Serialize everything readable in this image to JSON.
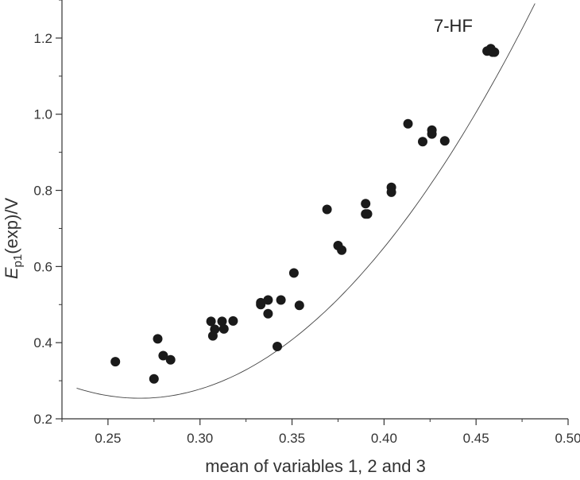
{
  "chart_data": {
    "type": "scatter",
    "xlabel": "mean of variables 1, 2 and 3",
    "ylabel_main": "E",
    "ylabel_sub": "p1",
    "ylabel_rest": "(exp)/V",
    "xlim": [
      0.225,
      0.5
    ],
    "ylim": [
      0.2,
      1.3
    ],
    "x_ticks": [
      "0.25",
      "0.30",
      "0.35",
      "0.40",
      "0.45",
      "0.50"
    ],
    "y_ticks": [
      "0.2",
      "0.4",
      "0.6",
      "0.8",
      "1.0",
      "1.2"
    ],
    "annotation": "7-HF",
    "points": [
      {
        "x": 0.254,
        "y": 0.35
      },
      {
        "x": 0.275,
        "y": 0.305
      },
      {
        "x": 0.277,
        "y": 0.41
      },
      {
        "x": 0.28,
        "y": 0.366
      },
      {
        "x": 0.284,
        "y": 0.355
      },
      {
        "x": 0.306,
        "y": 0.456
      },
      {
        "x": 0.307,
        "y": 0.418
      },
      {
        "x": 0.308,
        "y": 0.435
      },
      {
        "x": 0.312,
        "y": 0.456
      },
      {
        "x": 0.313,
        "y": 0.436
      },
      {
        "x": 0.318,
        "y": 0.457
      },
      {
        "x": 0.333,
        "y": 0.5
      },
      {
        "x": 0.333,
        "y": 0.505
      },
      {
        "x": 0.337,
        "y": 0.512
      },
      {
        "x": 0.337,
        "y": 0.476
      },
      {
        "x": 0.342,
        "y": 0.39
      },
      {
        "x": 0.344,
        "y": 0.512
      },
      {
        "x": 0.351,
        "y": 0.583
      },
      {
        "x": 0.354,
        "y": 0.498
      },
      {
        "x": 0.369,
        "y": 0.75
      },
      {
        "x": 0.375,
        "y": 0.655
      },
      {
        "x": 0.377,
        "y": 0.643
      },
      {
        "x": 0.39,
        "y": 0.765
      },
      {
        "x": 0.39,
        "y": 0.738
      },
      {
        "x": 0.391,
        "y": 0.738
      },
      {
        "x": 0.404,
        "y": 0.808
      },
      {
        "x": 0.404,
        "y": 0.795
      },
      {
        "x": 0.413,
        "y": 0.975
      },
      {
        "x": 0.421,
        "y": 0.928
      },
      {
        "x": 0.426,
        "y": 0.958
      },
      {
        "x": 0.426,
        "y": 0.948
      },
      {
        "x": 0.433,
        "y": 0.93
      },
      {
        "x": 0.456,
        "y": 1.166
      },
      {
        "x": 0.458,
        "y": 1.172
      },
      {
        "x": 0.459,
        "y": 1.163
      },
      {
        "x": 0.46,
        "y": 1.163
      }
    ],
    "fit_curve": {
      "type": "polynomial",
      "x_range": [
        0.233,
        0.482
      ],
      "coefficients": [
        1.862,
        -12.03,
        22.5
      ]
    },
    "grid": false,
    "legend": false
  }
}
